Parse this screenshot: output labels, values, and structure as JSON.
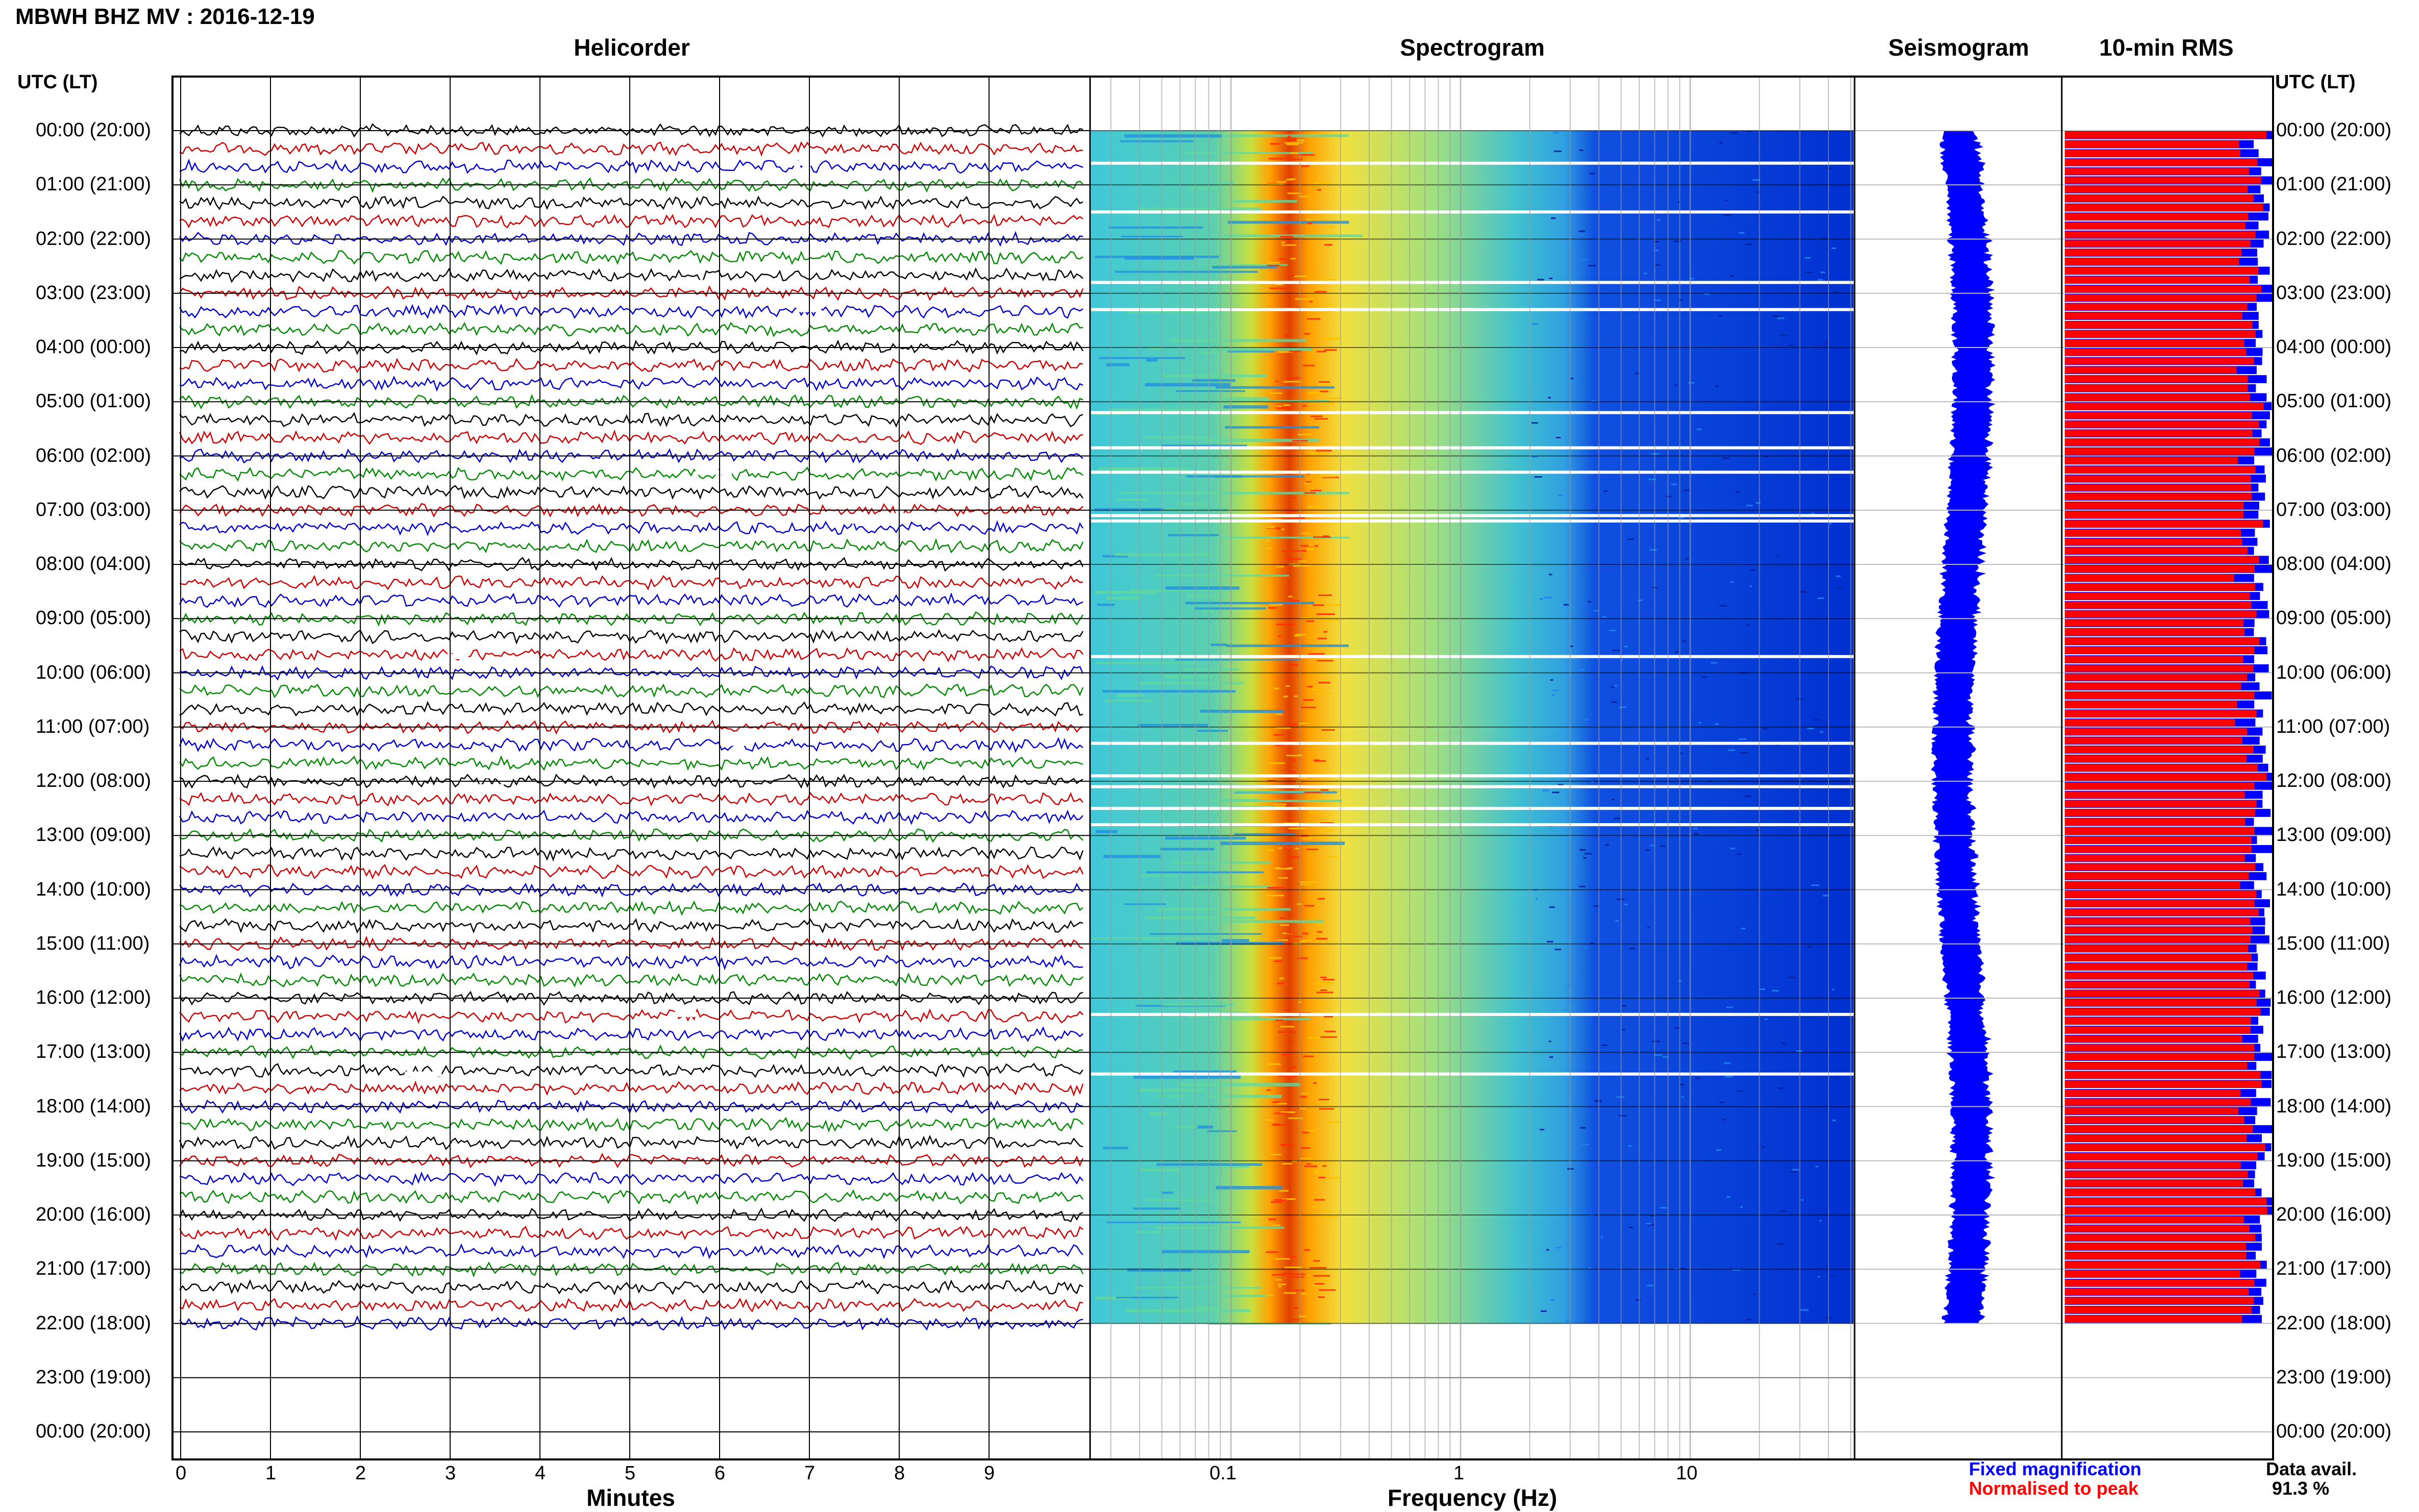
{
  "header": {
    "title": "MBWH BHZ MV : 2016-12-19",
    "utc_label_left": "UTC (LT)",
    "utc_label_right": "UTC (LT)"
  },
  "panels": {
    "helicorder": "Helicorder",
    "spectrogram": "Spectrogram",
    "seismogram": "Seismogram",
    "rms": "10-min RMS"
  },
  "axes": {
    "helicorder_xlabel": "Minutes",
    "spectrogram_xlabel": "Frequency (Hz)",
    "minute_ticks": [
      "0",
      "1",
      "2",
      "3",
      "4",
      "5",
      "6",
      "7",
      "8",
      "9"
    ],
    "freq_ticks": [
      "0.1",
      "1",
      "10"
    ],
    "time_labels": [
      "00:00 (20:00)",
      "01:00 (21:00)",
      "02:00 (22:00)",
      "03:00 (23:00)",
      "04:00 (00:00)",
      "05:00 (01:00)",
      "06:00 (02:00)",
      "07:00 (03:00)",
      "08:00 (04:00)",
      "09:00 (05:00)",
      "10:00 (06:00)",
      "11:00 (07:00)",
      "12:00 (08:00)",
      "13:00 (09:00)",
      "14:00 (10:00)",
      "15:00 (11:00)",
      "16:00 (12:00)",
      "17:00 (13:00)",
      "18:00 (14:00)",
      "19:00 (15:00)",
      "20:00 (16:00)",
      "21:00 (17:00)",
      "22:00 (18:00)",
      "23:00 (19:00)",
      "00:00 (20:00)"
    ]
  },
  "legend": {
    "fixed": "Fixed magnification",
    "normalised": "Normalised to peak",
    "fixed_color": "#0000ff",
    "normalised_color": "#ff0000",
    "data_avail_label": "Data avail.",
    "data_avail_value": "91.3 %"
  },
  "chart_data": {
    "type": "heatmap",
    "station": "MBWH BHZ MV",
    "date": "2016-12-19",
    "hours_with_data": 22,
    "freq_range_hz": [
      0.02,
      50
    ],
    "spectral_peak_hz": 0.22,
    "helicorder_colors": [
      "#000000",
      "#cc0000",
      "#0000cc",
      "#008800"
    ],
    "data_availability_percent": 91.3,
    "gap_hours": [
      0.6,
      1.5,
      2.8,
      3.3,
      5.2,
      5.85,
      6.3,
      7.1,
      7.2,
      9.7,
      11.3,
      11.9,
      12.1,
      12.5,
      12.8,
      16.3,
      17.4
    ]
  }
}
